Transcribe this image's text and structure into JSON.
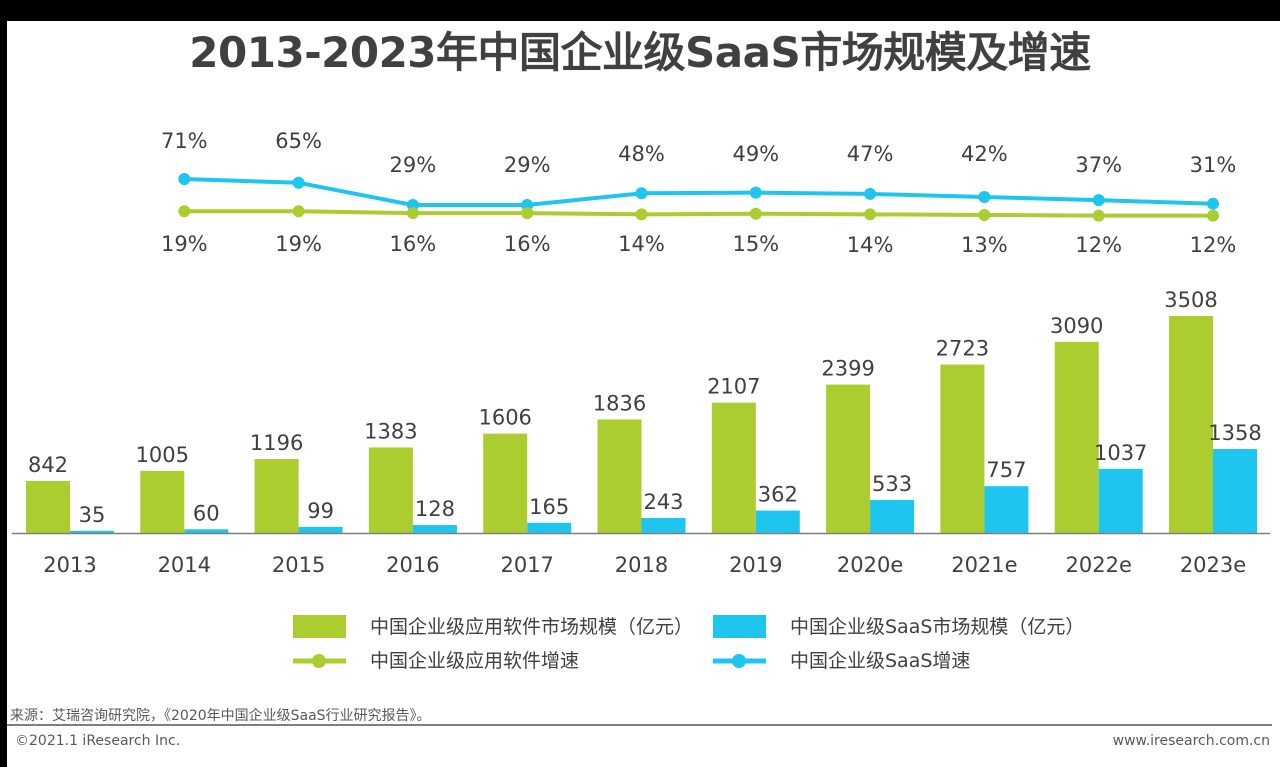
{
  "title": "2013-2023年中国企业级SaaS市场规模及增速",
  "chart_data": {
    "type": "bar+line",
    "title": "2013-2023年中国企业级SaaS市场规模及增速",
    "categories": [
      "2013",
      "2014",
      "2015",
      "2016",
      "2017",
      "2018",
      "2019",
      "2020e",
      "2021e",
      "2022e",
      "2023e"
    ],
    "bar_series": [
      {
        "name": "中国企业级应用软件市场规模（亿元）",
        "color": "#abcd2f",
        "values": [
          842,
          1005,
          1196,
          1383,
          1606,
          1836,
          2107,
          2399,
          2723,
          3090,
          3508
        ]
      },
      {
        "name": "中国企业级SaaS市场规模（亿元）",
        "color": "#1ec5ef",
        "values": [
          35,
          60,
          99,
          128,
          165,
          243,
          362,
          533,
          757,
          1037,
          1358
        ]
      }
    ],
    "line_categories": [
      "2014",
      "2015",
      "2016",
      "2017",
      "2018",
      "2019",
      "2020e",
      "2021e",
      "2022e",
      "2023e"
    ],
    "line_series": [
      {
        "name": "中国企业级SaaS增速",
        "color": "#1ec5ef",
        "values": [
          71,
          65,
          29,
          29,
          48,
          49,
          47,
          42,
          37,
          31
        ],
        "labels": [
          "71%",
          "65%",
          "29%",
          "29%",
          "48%",
          "49%",
          "47%",
          "42%",
          "37%",
          "31%"
        ]
      },
      {
        "name": "中国企业级应用软件增速",
        "color": "#abcd2f",
        "values": [
          19,
          19,
          16,
          16,
          14,
          15,
          14,
          13,
          12,
          12
        ],
        "labels": [
          "19%",
          "19%",
          "16%",
          "16%",
          "14%",
          "15%",
          "14%",
          "13%",
          "12%",
          "12%"
        ]
      }
    ],
    "legend_position": "bottom",
    "grid": false
  },
  "footer": {
    "source": "来源：艾瑞咨询研究院，《2020年中国企业级SaaS行业研究报告》。",
    "copyright": "©2021.1 iResearch Inc.",
    "url": "www.iresearch.com.cn"
  }
}
